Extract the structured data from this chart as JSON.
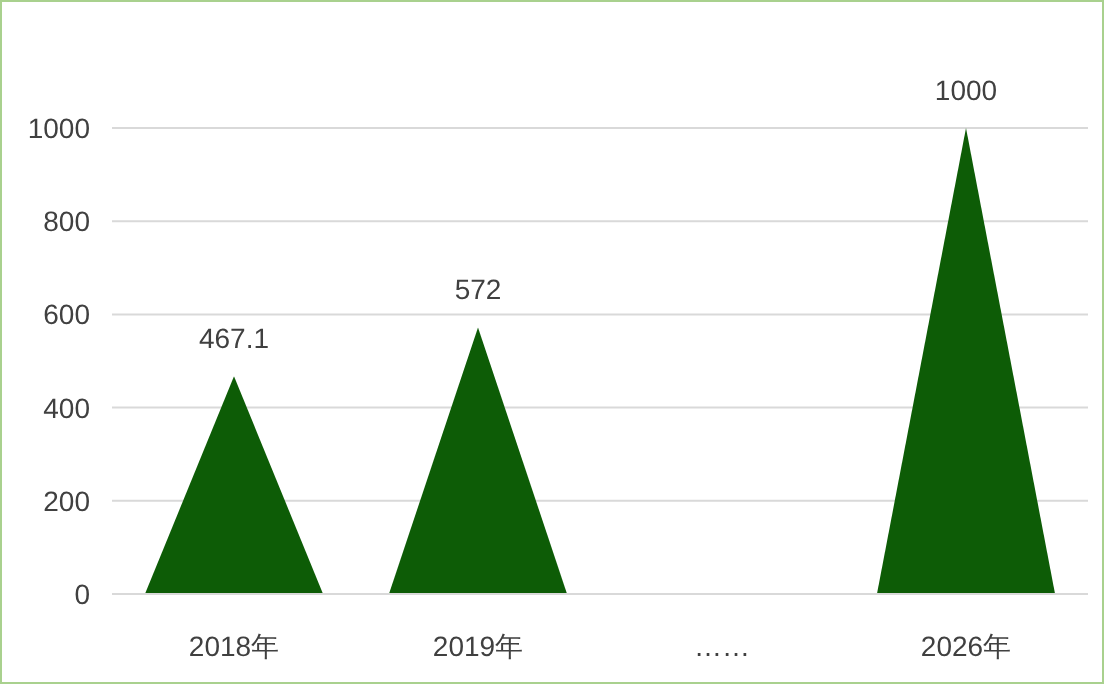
{
  "chart_data": {
    "type": "bar",
    "categories": [
      "2018年",
      "2019年",
      "……",
      "2026年"
    ],
    "values": [
      467.1,
      572,
      null,
      1000
    ],
    "color": "#0d5c06",
    "ylim": [
      0,
      1000
    ],
    "yticks": [
      0,
      200,
      400,
      600,
      800,
      1000
    ],
    "grid": "y",
    "data_labels": true
  }
}
